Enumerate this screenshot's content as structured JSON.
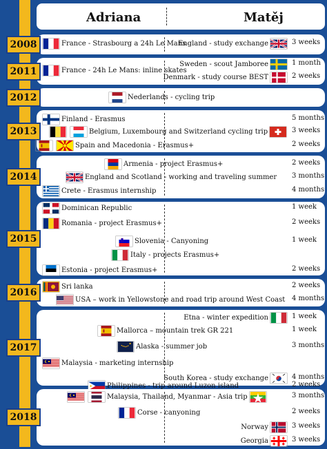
{
  "header": {
    "left_name": "Adriana",
    "right_name": "Matěj"
  },
  "years": [
    {
      "year": "2008",
      "entries": [
        {
          "side": "left",
          "text": "France - Strasbourg a 24h Le Mans",
          "flags": [
            "france-flag"
          ],
          "duration": ""
        },
        {
          "side": "right",
          "text": "England - study exchange",
          "flags": [
            "uk-flag"
          ],
          "duration": "3 weeks"
        }
      ]
    },
    {
      "year": "2011",
      "entries": [
        {
          "side": "left",
          "text": "France - 24h Le Mans: inline skates",
          "flags": [
            "france-flag"
          ],
          "duration": ""
        },
        {
          "side": "right",
          "text": "Sweden - scout Jamboree",
          "flags": [
            "sweden-flag"
          ],
          "duration": "1 month"
        },
        {
          "side": "right",
          "text": "Denmark - study course BEST",
          "flags": [
            "denmark-flag"
          ],
          "duration": "2 weeks"
        }
      ]
    },
    {
      "year": "2012",
      "entries": [
        {
          "side": "both",
          "text": "Nederlands - cycling trip",
          "flags": [
            "netherlands-flag"
          ],
          "duration": ""
        }
      ]
    },
    {
      "year": "2013",
      "entries": [
        {
          "side": "left",
          "text": "Finland - Erasmus",
          "flags": [
            "finland-flag"
          ],
          "duration": "5 months"
        },
        {
          "side": "both",
          "text": "Belgium, Luxembourg and Switzerland cycling trip",
          "flags": [
            "belgium-flag",
            "luxembourg-flag",
            "switzerland-flag"
          ],
          "duration": "3 weeks"
        },
        {
          "side": "left",
          "text": "Spain and Macedonia - Erasmus+",
          "flags": [
            "spain-flag",
            "macedonia-flag"
          ],
          "duration": "2 weeks"
        }
      ]
    },
    {
      "year": "2014",
      "entries": [
        {
          "side": "both",
          "text": "Armenia - project Erasmus+",
          "flags": [
            "armenia-flag"
          ],
          "duration": "2 weeks"
        },
        {
          "side": "both",
          "text": "England and Scotland - working and traveling summer",
          "flags": [
            "uk-flag"
          ],
          "duration": "3 months"
        },
        {
          "side": "left",
          "text": "Crete - Erasmus internship",
          "flags": [
            "greece-flag"
          ],
          "duration": "4 months"
        }
      ]
    },
    {
      "year": "2015",
      "entries": [
        {
          "side": "left",
          "text": "Dominican Republic",
          "flags": [
            "dominican-flag"
          ],
          "duration": "1 week"
        },
        {
          "side": "left",
          "text": "Romania - project Erasmus+",
          "flags": [
            "romania-flag"
          ],
          "duration": "2 weeks"
        },
        {
          "side": "both",
          "text": "Slovenia - Canyoning",
          "flags": [
            "slovenia-flag"
          ],
          "duration": "1 week"
        },
        {
          "side": "both",
          "text": "Italy - projects Erasmus+",
          "flags": [
            "italy-flag"
          ],
          "duration": ""
        },
        {
          "side": "left",
          "text": "Estonia - project Erasmus+",
          "flags": [
            "estonia-flag"
          ],
          "duration": "2 weeks"
        }
      ]
    },
    {
      "year": "2016",
      "entries": [
        {
          "side": "left",
          "text": "Sri lanka",
          "flags": [
            "srilanka-flag"
          ],
          "duration": "2 weeks"
        },
        {
          "side": "both",
          "text": "USA – work in Yellowstone and road trip around West Coast",
          "flags": [
            "usa-flag"
          ],
          "duration": "4 months"
        }
      ]
    },
    {
      "year": "2017",
      "entries": [
        {
          "side": "right",
          "text": "Etna - winter expedition",
          "flags": [
            "italy-flag"
          ],
          "duration": "1 week"
        },
        {
          "side": "both",
          "text": "Mallorca – mountain trek GR 221",
          "flags": [
            "spain-flag"
          ],
          "duration": "1 week"
        },
        {
          "side": "both",
          "text": "Alaska - summer job",
          "flags": [
            "alaska-flag"
          ],
          "duration": "3 months"
        },
        {
          "side": "left",
          "text": "Malaysia - marketing internship",
          "flags": [
            "malaysia-flag"
          ],
          "duration": ""
        },
        {
          "side": "right",
          "text": "South Korea - study exchange",
          "flags": [
            "korea-flag"
          ],
          "duration": "4 months"
        },
        {
          "side": "both",
          "text": "Philippines - trip around Luzon island",
          "flags": [
            "philippines-flag"
          ],
          "duration": "2 weeks"
        }
      ]
    },
    {
      "year": "2018",
      "entries": [
        {
          "side": "both",
          "text": "Malaysia, Thailand, Myanmar - Asia trip",
          "flags": [
            "malaysia-flag",
            "thailand-flag",
            "myanmar-flag"
          ],
          "duration": "3 months"
        },
        {
          "side": "both",
          "text": "Corse - canyoning",
          "flags": [
            "france-flag"
          ],
          "duration": "2 weeks"
        },
        {
          "side": "right",
          "text": "Norway",
          "flags": [
            "norway-flag"
          ],
          "duration": "3 weeks"
        },
        {
          "side": "right",
          "text": "Georgia",
          "flags": [
            "georgia-flag"
          ],
          "duration": "3 weeks"
        }
      ]
    }
  ]
}
